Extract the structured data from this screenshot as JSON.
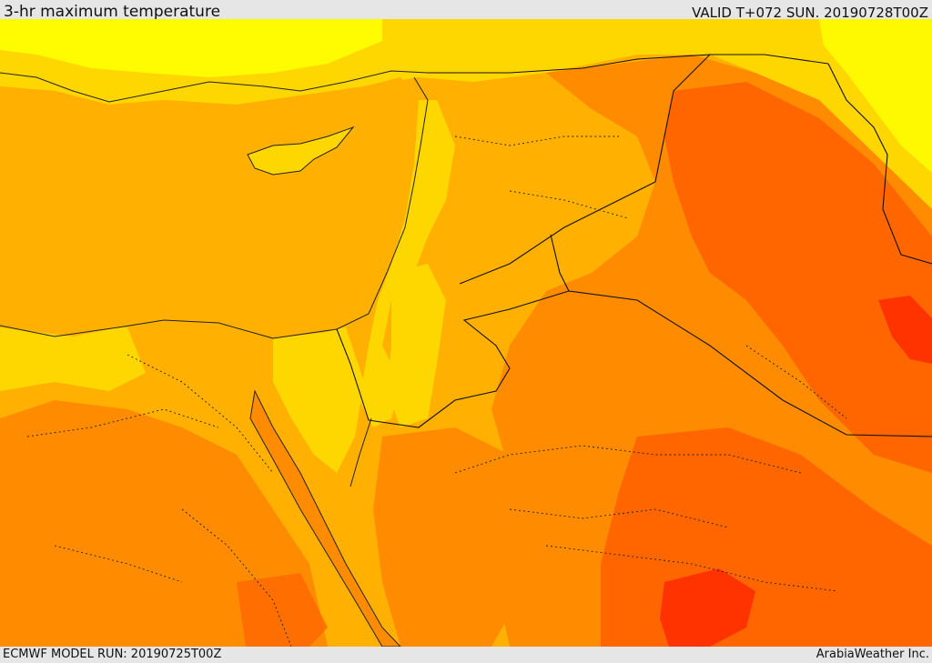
{
  "header": {
    "title": "3-hr maximum temperature",
    "valid": "VALID T+072 SUN. 20190728T00Z"
  },
  "footer": {
    "model_run": "ECMWF MODEL RUN: 20190725T00Z",
    "credit": "ArabiaWeather Inc."
  },
  "legend_colors": {
    "coolest": "#ffff00",
    "cool": "#ffd700",
    "moderate": "#ffb000",
    "warm": "#ff8c00",
    "hot": "#ff6600",
    "hottest": "#ff3300"
  }
}
